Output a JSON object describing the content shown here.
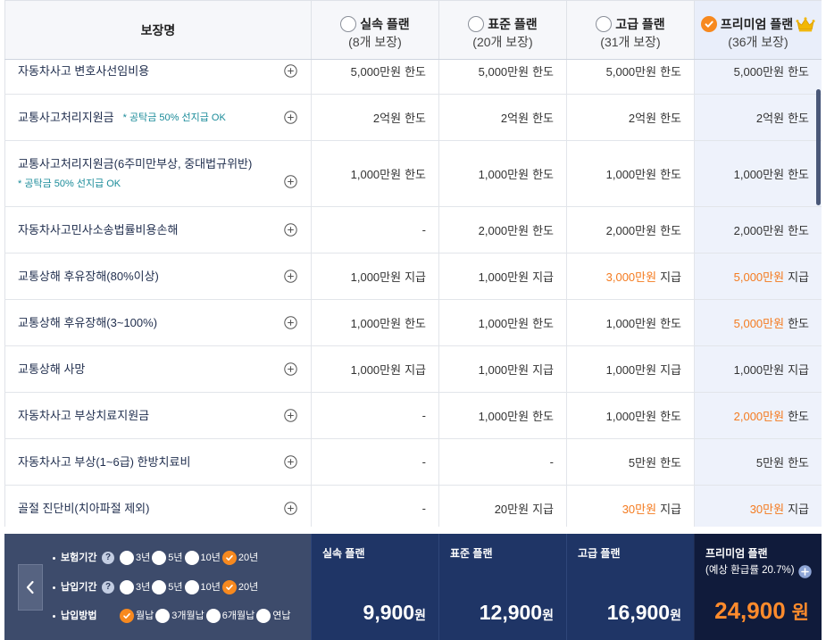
{
  "colors": {
    "accent": "#f7891f",
    "highlight_text": "#f47b20",
    "price_highlight": "#ff8b2c",
    "note_text": "#1a8b99",
    "label_text": "#1f2d4d",
    "premium_column_bg": "#eef2fb",
    "footer_left_bg": "#3d4b6b",
    "footer_plan_bg": "#1f3566",
    "footer_premium_bg": "#101b3b",
    "crown": "#f2b705"
  },
  "icons": {
    "row_action": "plus-circle-icon",
    "premium_badge": "crown-icon",
    "help": "help-icon",
    "prev": "chevron-left-icon",
    "selected": "check-icon"
  },
  "header": {
    "coverage_label": "보장명",
    "plans": [
      {
        "name": "실속 플랜",
        "count": "(8개 보장)",
        "selected": false
      },
      {
        "name": "표준 플랜",
        "count": "(20개 보장)",
        "selected": false
      },
      {
        "name": "고급 플랜",
        "count": "(31개 보장)",
        "selected": false
      },
      {
        "name": "프리미엄 플랜",
        "count": "(36개 보장)",
        "selected": true
      }
    ]
  },
  "rows": [
    {
      "name": "자동차사고 변호사선임비용",
      "values": [
        {
          "amount": "5,000만원",
          "suffix": "한도",
          "highlight": false
        },
        {
          "amount": "5,000만원",
          "suffix": "한도",
          "highlight": false
        },
        {
          "amount": "5,000만원",
          "suffix": "한도",
          "highlight": false
        },
        {
          "amount": "5,000만원",
          "suffix": "한도",
          "highlight": false
        }
      ]
    },
    {
      "name": "교통사고처리지원금",
      "note": "* 공탁금 50% 선지급 OK",
      "values": [
        {
          "amount": "2억원",
          "suffix": "한도",
          "highlight": false
        },
        {
          "amount": "2억원",
          "suffix": "한도",
          "highlight": false
        },
        {
          "amount": "2억원",
          "suffix": "한도",
          "highlight": false
        },
        {
          "amount": "2억원",
          "suffix": "한도",
          "highlight": false
        }
      ]
    },
    {
      "name": "교통사고처리지원금(6주미만부상, 중대법규위반)",
      "note": "* 공탁금 50% 선지급 OK",
      "values": [
        {
          "amount": "1,000만원",
          "suffix": "한도",
          "highlight": false
        },
        {
          "amount": "1,000만원",
          "suffix": "한도",
          "highlight": false
        },
        {
          "amount": "1,000만원",
          "suffix": "한도",
          "highlight": false
        },
        {
          "amount": "1,000만원",
          "suffix": "한도",
          "highlight": false
        }
      ]
    },
    {
      "name": "자동차사고민사소송법률비용손해",
      "values": [
        {
          "amount": "-",
          "highlight": false
        },
        {
          "amount": "2,000만원",
          "suffix": "한도",
          "highlight": false
        },
        {
          "amount": "2,000만원",
          "suffix": "한도",
          "highlight": false
        },
        {
          "amount": "2,000만원",
          "suffix": "한도",
          "highlight": false
        }
      ]
    },
    {
      "name": "교통상해 후유장해(80%이상)",
      "values": [
        {
          "amount": "1,000만원",
          "suffix": "지급",
          "highlight": false
        },
        {
          "amount": "1,000만원",
          "suffix": "지급",
          "highlight": false
        },
        {
          "amount": "3,000만원",
          "suffix": "지급",
          "highlight": true
        },
        {
          "amount": "5,000만원",
          "suffix": "지급",
          "highlight": true
        }
      ]
    },
    {
      "name": "교통상해 후유장해(3~100%)",
      "values": [
        {
          "amount": "1,000만원",
          "suffix": "한도",
          "highlight": false
        },
        {
          "amount": "1,000만원",
          "suffix": "한도",
          "highlight": false
        },
        {
          "amount": "1,000만원",
          "suffix": "한도",
          "highlight": false
        },
        {
          "amount": "5,000만원",
          "suffix": "한도",
          "highlight": true
        }
      ]
    },
    {
      "name": "교통상해 사망",
      "values": [
        {
          "amount": "1,000만원",
          "suffix": "지급",
          "highlight": false
        },
        {
          "amount": "1,000만원",
          "suffix": "지급",
          "highlight": false
        },
        {
          "amount": "1,000만원",
          "suffix": "지급",
          "highlight": false
        },
        {
          "amount": "1,000만원",
          "suffix": "지급",
          "highlight": false
        }
      ]
    },
    {
      "name": "자동차사고 부상치료지원금",
      "values": [
        {
          "amount": "-",
          "highlight": false
        },
        {
          "amount": "1,000만원",
          "suffix": "한도",
          "highlight": false
        },
        {
          "amount": "1,000만원",
          "suffix": "한도",
          "highlight": false
        },
        {
          "amount": "2,000만원",
          "suffix": "한도",
          "highlight": true
        }
      ]
    },
    {
      "name": "자동차사고 부상(1~6급) 한방치료비",
      "values": [
        {
          "amount": "-",
          "highlight": false
        },
        {
          "amount": "-",
          "highlight": false
        },
        {
          "amount": "5만원",
          "suffix": "한도",
          "highlight": false
        },
        {
          "amount": "5만원",
          "suffix": "한도",
          "highlight": false
        }
      ]
    },
    {
      "name": "골절 진단비(치아파절 제외)",
      "values": [
        {
          "amount": "-",
          "highlight": false
        },
        {
          "amount": "20만원",
          "suffix": "지급",
          "highlight": false
        },
        {
          "amount": "30만원",
          "suffix": "지급",
          "highlight": true
        },
        {
          "amount": "30만원",
          "suffix": "지급",
          "highlight": true
        }
      ]
    }
  ],
  "footer": {
    "options": [
      {
        "label": "보험기간",
        "help_icon": "help-icon",
        "choices": [
          "3년",
          "5년",
          "10년",
          "20년"
        ],
        "selected_index": 3
      },
      {
        "label": "납입기간",
        "help_icon": "help-icon",
        "choices": [
          "3년",
          "5년",
          "10년",
          "20년"
        ],
        "selected_index": 3
      },
      {
        "label": "납입방법",
        "choices": [
          "월납",
          "3개월납",
          "6개월납",
          "연납"
        ],
        "selected_index": 0
      }
    ],
    "prices": [
      {
        "plan": "실속 플랜",
        "amount": "9,900",
        "currency": "원"
      },
      {
        "plan": "표준 플랜",
        "amount": "12,900",
        "currency": "원"
      },
      {
        "plan": "고급 플랜",
        "amount": "16,900",
        "currency": "원"
      },
      {
        "plan": "프리미엄 플랜",
        "note": "(예상 환급률 20.7%)",
        "amount": "24,900",
        "currency": "원"
      }
    ]
  }
}
